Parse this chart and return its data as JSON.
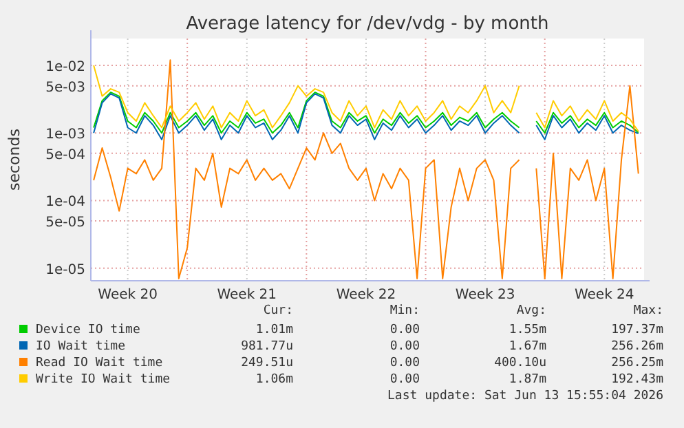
{
  "chart_data": {
    "type": "line",
    "title": "Average latency for /dev/vdg - by month",
    "ylabel": "seconds",
    "log": "y",
    "grid": true,
    "legend": "bottom",
    "ylim": [
      6.5e-06,
      0.025
    ],
    "yticks": [
      {
        "value": 0.01,
        "label": "1e-02"
      },
      {
        "value": 0.005,
        "label": "5e-03"
      },
      {
        "value": 0.001,
        "label": "1e-03"
      },
      {
        "value": 0.0005,
        "label": "5e-04"
      },
      {
        "value": 0.0001,
        "label": "1e-04"
      },
      {
        "value": 5e-05,
        "label": "5e-05"
      },
      {
        "value": 1e-05,
        "label": "1e-05"
      }
    ],
    "xlim": [
      "2026-05-12T08:00",
      "2026-06-13T20:00"
    ],
    "xticks": [
      {
        "value": "2026-05-14T12:00",
        "label": "Week 20"
      },
      {
        "value": "2026-05-18T00:00",
        "label": null
      },
      {
        "value": "2026-05-21T12:00",
        "label": "Week 21"
      },
      {
        "value": "2026-05-25T00:00",
        "label": null
      },
      {
        "value": "2026-05-28T12:00",
        "label": "Week 22"
      },
      {
        "value": "2026-06-01T00:00",
        "label": null
      },
      {
        "value": "2026-06-04T12:00",
        "label": "Week 23"
      },
      {
        "value": "2026-06-08T00:00",
        "label": null
      },
      {
        "value": "2026-06-11T12:00",
        "label": "Week 24"
      }
    ],
    "x": [
      "2026-05-12T12:00",
      "2026-05-13T00:00",
      "2026-05-13T12:00",
      "2026-05-14T00:00",
      "2026-05-14T12:00",
      "2026-05-15T00:00",
      "2026-05-15T12:00",
      "2026-05-16T00:00",
      "2026-05-16T12:00",
      "2026-05-17T00:00",
      "2026-05-17T12:00",
      "2026-05-18T00:00",
      "2026-05-18T12:00",
      "2026-05-19T00:00",
      "2026-05-19T12:00",
      "2026-05-20T00:00",
      "2026-05-20T12:00",
      "2026-05-21T00:00",
      "2026-05-21T12:00",
      "2026-05-22T00:00",
      "2026-05-22T12:00",
      "2026-05-23T00:00",
      "2026-05-23T12:00",
      "2026-05-24T00:00",
      "2026-05-24T12:00",
      "2026-05-25T00:00",
      "2026-05-25T12:00",
      "2026-05-26T00:00",
      "2026-05-26T12:00",
      "2026-05-27T00:00",
      "2026-05-27T12:00",
      "2026-05-28T00:00",
      "2026-05-28T12:00",
      "2026-05-29T00:00",
      "2026-05-29T12:00",
      "2026-05-30T00:00",
      "2026-05-30T12:00",
      "2026-05-31T00:00",
      "2026-05-31T12:00",
      "2026-06-01T00:00",
      "2026-06-01T12:00",
      "2026-06-02T00:00",
      "2026-06-02T12:00",
      "2026-06-03T00:00",
      "2026-06-03T12:00",
      "2026-06-04T00:00",
      "2026-06-04T12:00",
      "2026-06-05T00:00",
      "2026-06-05T12:00",
      "2026-06-06T00:00",
      "2026-06-06T12:00",
      "2026-06-07T00:00",
      "2026-06-07T12:00",
      "2026-06-08T00:00",
      "2026-06-08T12:00",
      "2026-06-09T00:00",
      "2026-06-09T12:00",
      "2026-06-10T00:00",
      "2026-06-10T12:00",
      "2026-06-11T00:00",
      "2026-06-11T12:00",
      "2026-06-12T00:00",
      "2026-06-12T12:00",
      "2026-06-13T00:00",
      "2026-06-13T12:00"
    ],
    "series": [
      {
        "name": "Device IO time",
        "color": "#00cc00",
        "values": [
          0.0012,
          0.003,
          0.004,
          0.0035,
          0.0015,
          0.0012,
          0.002,
          0.0015,
          0.001,
          0.002,
          0.0012,
          0.0015,
          0.002,
          0.0013,
          0.0018,
          0.001,
          0.0015,
          0.0012,
          0.002,
          0.0014,
          0.0016,
          0.001,
          0.0013,
          0.002,
          0.0012,
          0.003,
          0.004,
          0.0035,
          0.0015,
          0.0012,
          0.002,
          0.0015,
          0.0018,
          0.001,
          0.0016,
          0.0013,
          0.002,
          0.0014,
          0.0018,
          0.0012,
          0.0015,
          0.002,
          0.0013,
          0.0017,
          0.0015,
          0.002,
          0.0012,
          0.0016,
          0.002,
          0.0015,
          0.0012,
          null,
          0.0015,
          0.001,
          0.002,
          0.0014,
          0.0018,
          0.0012,
          0.0016,
          0.0013,
          0.002,
          0.0012,
          0.0015,
          0.0013,
          0.00101
        ]
      },
      {
        "name": "IO Wait time",
        "color": "#0066b3",
        "values": [
          0.001,
          0.0028,
          0.0038,
          0.0033,
          0.0012,
          0.001,
          0.0018,
          0.0013,
          0.0008,
          0.0018,
          0.001,
          0.0013,
          0.0018,
          0.0011,
          0.0016,
          0.0008,
          0.0013,
          0.001,
          0.0018,
          0.0012,
          0.0014,
          0.0008,
          0.0011,
          0.0018,
          0.001,
          0.0028,
          0.0038,
          0.0033,
          0.0013,
          0.001,
          0.0018,
          0.0013,
          0.0016,
          0.0008,
          0.0014,
          0.0011,
          0.0018,
          0.0012,
          0.0016,
          0.001,
          0.0013,
          0.0018,
          0.0011,
          0.0015,
          0.0013,
          0.0018,
          0.001,
          0.0014,
          0.0018,
          0.0013,
          0.001,
          null,
          0.0013,
          0.0008,
          0.0018,
          0.0012,
          0.0016,
          0.001,
          0.0014,
          0.0011,
          0.0018,
          0.001,
          0.0013,
          0.0011,
          0.00098
        ]
      },
      {
        "name": "Read IO Wait time",
        "color": "#ff8000",
        "values": [
          0.0002,
          0.0006,
          0.00022,
          7e-05,
          0.0003,
          0.00025,
          0.0004,
          0.0002,
          0.0003,
          0.012,
          7e-06,
          2e-05,
          0.0003,
          0.0002,
          0.0005,
          8e-05,
          0.0003,
          0.00025,
          0.0004,
          0.0002,
          0.0003,
          0.0002,
          0.00025,
          0.00015,
          0.0003,
          0.0006,
          0.0004,
          0.001,
          0.0005,
          0.0007,
          0.0003,
          0.0002,
          0.0003,
          0.0001,
          0.00025,
          0.00015,
          0.0003,
          0.0002,
          7e-06,
          0.0003,
          0.0004,
          7e-06,
          8e-05,
          0.0003,
          0.0001,
          0.0003,
          0.0004,
          0.0002,
          7e-06,
          0.0003,
          0.0004,
          null,
          0.0003,
          7e-06,
          0.0005,
          7e-06,
          0.0003,
          0.0002,
          0.0004,
          0.0001,
          0.0003,
          7e-06,
          0.0004,
          0.005,
          0.00025
        ]
      },
      {
        "name": "Write IO Wait time",
        "color": "#ffcc00",
        "values": [
          0.01,
          0.0035,
          0.0045,
          0.004,
          0.002,
          0.0015,
          0.0028,
          0.0018,
          0.0012,
          0.0025,
          0.0015,
          0.002,
          0.0028,
          0.0016,
          0.0025,
          0.0012,
          0.002,
          0.0015,
          0.003,
          0.0018,
          0.0022,
          0.0012,
          0.0018,
          0.0028,
          0.005,
          0.0035,
          0.0045,
          0.004,
          0.002,
          0.0015,
          0.003,
          0.0018,
          0.0025,
          0.0012,
          0.0022,
          0.0016,
          0.003,
          0.0018,
          0.0025,
          0.0015,
          0.002,
          0.003,
          0.0016,
          0.0025,
          0.002,
          0.003,
          0.005,
          0.002,
          0.003,
          0.002,
          0.005,
          null,
          0.002,
          0.0012,
          0.003,
          0.0018,
          0.0025,
          0.0015,
          0.0022,
          0.0016,
          0.003,
          0.0015,
          0.002,
          0.0016,
          0.00106
        ]
      }
    ],
    "annotations": [
      "Cur:",
      "Min:",
      "Avg:",
      "Max:",
      "1.01m",
      "0.00",
      "1.55m",
      "197.37m",
      "981.77u",
      "0.00",
      "1.67m",
      "256.26m",
      "249.51u",
      "0.00",
      "400.10u",
      "256.25m",
      "1.06m",
      "0.00",
      "1.87m",
      "192.43m",
      "Last update: Sat Jun 13 15:55:04 2026"
    ]
  }
}
